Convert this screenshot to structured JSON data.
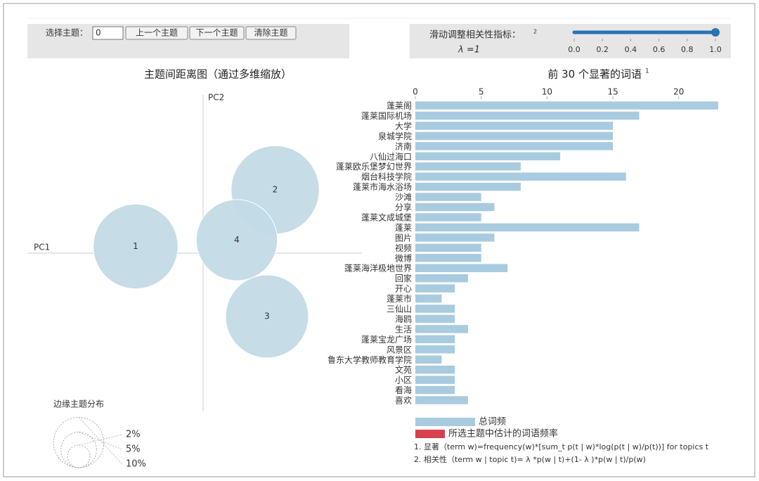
{
  "controls": {
    "topic_label": "选择主题：",
    "topic_value": 0,
    "buttons": [
      "上一个主题",
      "下一个主题",
      "清除主题"
    ],
    "lambda_label": "滑动调整相关性指标：",
    "lambda_note": "2",
    "lambda_text": "λ =1",
    "lambda": 1,
    "slider_ticks": [
      {
        "value": 0,
        "label": "0.0"
      },
      {
        "value": 0.2,
        "label": "0.2"
      },
      {
        "value": 0.4,
        "label": "0.4"
      },
      {
        "value": 0.6,
        "label": "0.6"
      },
      {
        "value": 0.8,
        "label": "0.8"
      },
      {
        "value": 1,
        "label": "1.0"
      }
    ]
  },
  "chart_data": [
    {
      "type": "scatter",
      "title": "主题间距离图（通过多维缩放）",
      "x_label": "PC1",
      "y_label": "PC2",
      "labels": [
        "1",
        "2",
        "3",
        "4"
      ],
      "x": [
        -0.096,
        0.1025,
        0.091,
        0.048
      ],
      "y": [
        0.0095,
        0.09,
        -0.09,
        0.0185
      ],
      "sizes": [
        24,
        26,
        23,
        22
      ],
      "color": "#c3dae6",
      "xlim": [
        -0.25,
        0.25
      ],
      "ylim": [
        -0.225,
        0.225
      ],
      "size_legend": {
        "title": "边缘主题分布",
        "values": [
          2,
          5,
          10
        ],
        "value_labels": [
          "2%",
          "5%",
          "10%"
        ]
      }
    },
    {
      "type": "bar",
      "title": "前 30 个显著的词语",
      "title_note": "1",
      "categories": [
        "蓬莱阁",
        "蓬莱国际机场",
        "大学",
        "泉城学院",
        "济南",
        "八仙过海口",
        "蓬莱欧乐堡梦幻世界",
        "烟台科技学院",
        "蓬莱市海水浴场",
        "沙滩",
        "分享",
        "蓬莱文成城堡",
        "蓬莱",
        "图片",
        "视频",
        "微博",
        "蓬莱海洋极地世界",
        "回家",
        "开心",
        "蓬莱市",
        "三仙山",
        "海鸥",
        "生活",
        "蓬莱宝龙广场",
        "风景区",
        "鲁东大学教师教育学院",
        "文苑",
        "小区",
        "看海",
        "喜欢"
      ],
      "series": [
        {
          "name": "总词频",
          "color": "#a8cbe0",
          "values": [
            23,
            17,
            15,
            15,
            15,
            11,
            8,
            16,
            8,
            5,
            6,
            5,
            17,
            6,
            5,
            5,
            7,
            4,
            3,
            2,
            3,
            3,
            4,
            3,
            3,
            2,
            3,
            3,
            3,
            4
          ]
        }
      ],
      "legend": [
        {
          "name": "总词频",
          "color": "#a8cbe0"
        },
        {
          "name": "所选主题中估计的词语频率",
          "color": "#d6404f"
        }
      ],
      "xlim": [
        0,
        23
      ],
      "xticks": [
        0,
        5,
        10,
        15,
        20
      ],
      "notes": [
        "1.  显著（term  w)=frequency(w)*[sum_t p(t | w)*log(p(t | w)/p(t))]  for topics  t",
        "2.  相关性（term  w | topic  t)= λ *p(w | t)+(1- λ )*p(w | t)/p(w)"
      ]
    }
  ]
}
